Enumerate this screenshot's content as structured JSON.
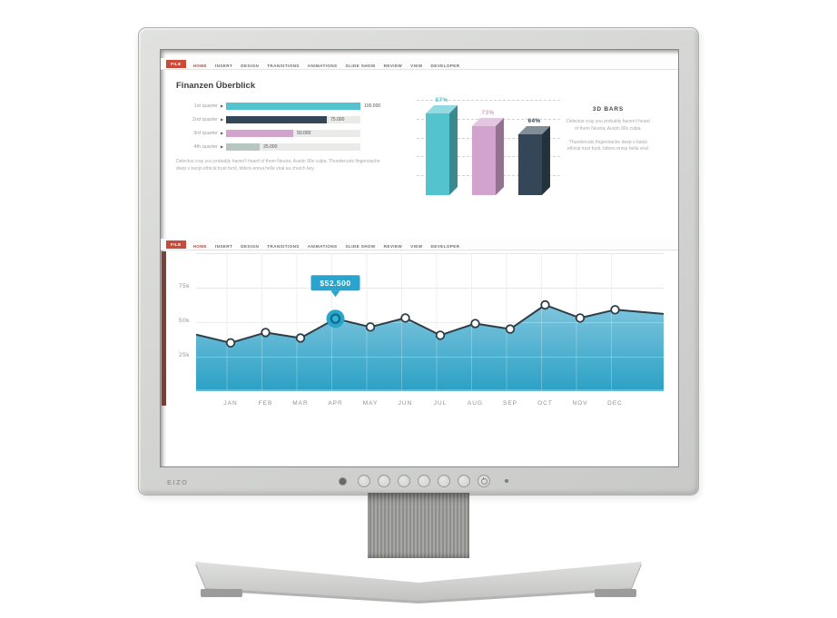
{
  "monitor": {
    "brand": "EIZO",
    "buttons": {
      "count": 7,
      "sensor": "ambient-light-sensor",
      "power_icon": "power",
      "led": "power-led"
    }
  },
  "ribbon": {
    "file_label": "FILE",
    "tabs": [
      "HOME",
      "INSERT",
      "DESIGN",
      "TRANSITIONS",
      "ANIMATIONS",
      "SLIDE SHOW",
      "REVIEW",
      "VIEW",
      "DEVELOPER"
    ],
    "active_tab": "HOME",
    "file_color": "#c94a38",
    "active_color": "#c3472f"
  },
  "slide1": {
    "body_text": "Delectus cray you probably haven't heard of them Neutra, Austin 90s culpa. Thundercats fingerstache deep v banjo ethical trust fund, bitters ennui hella viral ea church key.",
    "bars3d_text1": "Delectus cray you probably haven't heard of them Neutra, Austin 90s culpa.",
    "bars3d_text2": "Thundercats fingerstache deep v banjo ethical trust fund, bitters ennui hella viral."
  },
  "chart_data": [
    {
      "id": "quarter-bars",
      "type": "bar",
      "orientation": "horizontal",
      "title": "Finanzen Überblick",
      "categories": [
        "1st quarter",
        "2nd quarter",
        "3rd quarter",
        "4th quarter"
      ],
      "values": [
        100000,
        75000,
        50000,
        25000
      ],
      "value_labels": [
        "100.000",
        "75.000",
        "50.000",
        "25.000"
      ],
      "colors": [
        "#53c3ce",
        "#344758",
        "#d2a3cc",
        "#b7c6c0"
      ],
      "track_color": "#eaebe9",
      "xlim": [
        0,
        100000
      ]
    },
    {
      "id": "bars-3d",
      "type": "bar",
      "style": "3d",
      "title": "3D BARS",
      "values": [
        87,
        73,
        64
      ],
      "value_labels": [
        "87%",
        "73%",
        "64%"
      ],
      "colors": [
        "#53c3ce",
        "#d2a3cc",
        "#344758"
      ],
      "ylim": [
        0,
        100
      ],
      "grid": "dashed-horizontal"
    },
    {
      "id": "monthly-area",
      "type": "area",
      "categories": [
        "JAN",
        "FEB",
        "MAR",
        "APR",
        "MAY",
        "JUN",
        "JUL",
        "AUG",
        "SEP",
        "OCT",
        "NOV",
        "DEC"
      ],
      "values": [
        35000,
        42500,
        38500,
        52500,
        46500,
        53000,
        40500,
        49000,
        45000,
        62500,
        53000,
        59000
      ],
      "edge_values": {
        "left": 41000,
        "right": 56000
      },
      "y_ticks": [
        75000,
        50000,
        25000
      ],
      "y_tick_labels": [
        "75k",
        "50k",
        "25k"
      ],
      "ylim": [
        0,
        100000
      ],
      "highlight": {
        "category": "APR",
        "tooltip": "$52.500"
      },
      "line_color": "#2f3e46",
      "marker_fill": "#ffffff",
      "area_top_color": "#7fc5dd",
      "area_bottom_color": "#2ba1c5",
      "highlight_color": "#2aa6ca",
      "tooltip_bg": "#2aa4cd",
      "grid": true
    }
  ]
}
